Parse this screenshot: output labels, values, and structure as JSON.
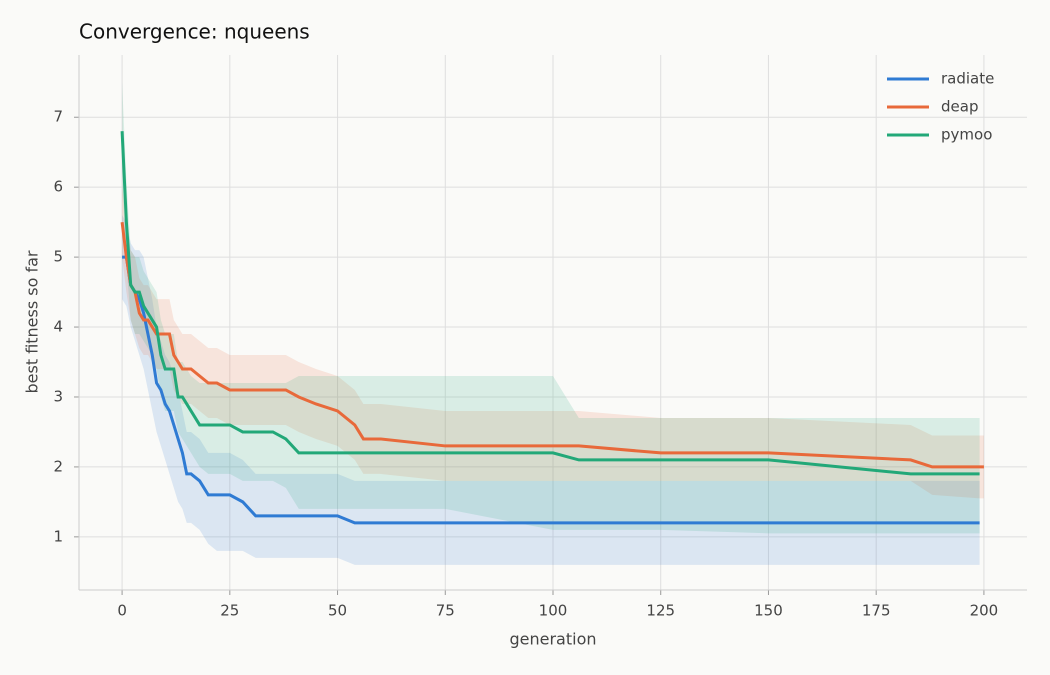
{
  "chart_data": {
    "type": "line",
    "title": "Convergence: nqueens",
    "x_label": "generation",
    "y_label": "best fitness so far",
    "xlim": [
      -10,
      210
    ],
    "ylim": [
      0.24,
      7.89
    ],
    "xticks": [
      0,
      25,
      50,
      75,
      100,
      125,
      150,
      175,
      200
    ],
    "yticks": [
      1,
      2,
      3,
      4,
      5,
      6,
      7
    ],
    "grid": true,
    "legend": "upper right",
    "x": [
      0,
      1,
      2,
      3,
      4,
      5,
      6,
      7,
      8,
      9,
      10,
      11,
      12,
      13,
      14,
      15,
      16,
      18,
      20,
      22,
      25,
      28,
      31,
      35,
      38,
      41,
      45,
      50,
      54,
      56,
      60,
      75,
      100,
      106,
      125,
      150,
      183,
      188,
      199,
      200
    ],
    "series": [
      {
        "name": "radiate",
        "color": "#2f7bd3",
        "values": [
          5.0,
          5.0,
          4.6,
          4.5,
          4.4,
          4.2,
          3.9,
          3.6,
          3.2,
          3.1,
          2.9,
          2.8,
          2.6,
          2.4,
          2.2,
          1.9,
          1.9,
          1.8,
          1.6,
          1.6,
          1.6,
          1.5,
          1.3,
          1.3,
          1.3,
          1.3,
          1.3,
          1.3,
          1.2,
          1.2,
          1.2,
          1.2,
          1.2,
          1.2,
          1.2,
          1.2,
          1.2,
          1.2,
          1.2,
          null
        ],
        "lower": [
          4.4,
          4.3,
          4.0,
          3.8,
          3.6,
          3.4,
          3.1,
          2.8,
          2.5,
          2.3,
          2.1,
          1.9,
          1.7,
          1.5,
          1.4,
          1.2,
          1.2,
          1.1,
          0.9,
          0.8,
          0.8,
          0.8,
          0.7,
          0.7,
          0.7,
          0.7,
          0.7,
          0.7,
          0.6,
          0.6,
          0.6,
          0.6,
          0.6,
          0.6,
          0.6,
          0.6,
          0.6,
          0.6,
          0.6,
          null
        ],
        "upper": [
          5.6,
          5.5,
          5.2,
          5.1,
          5.1,
          5.0,
          4.7,
          4.4,
          4.0,
          3.8,
          3.6,
          3.5,
          3.3,
          3.1,
          2.8,
          2.5,
          2.5,
          2.4,
          2.2,
          2.2,
          2.2,
          2.1,
          1.9,
          1.9,
          1.9,
          1.9,
          1.9,
          1.9,
          1.8,
          1.8,
          1.8,
          1.8,
          1.8,
          1.8,
          1.8,
          1.8,
          1.8,
          1.8,
          1.8,
          null
        ]
      },
      {
        "name": "deap",
        "color": "#e8693a",
        "values": [
          5.5,
          5.0,
          4.6,
          4.5,
          4.2,
          4.1,
          4.1,
          4.0,
          3.9,
          3.9,
          3.9,
          3.9,
          3.6,
          3.5,
          3.4,
          3.4,
          3.4,
          3.3,
          3.2,
          3.2,
          3.1,
          3.1,
          3.1,
          3.1,
          3.1,
          3.0,
          2.9,
          2.8,
          2.6,
          2.4,
          2.4,
          2.3,
          2.3,
          2.3,
          2.2,
          2.2,
          2.1,
          2.0,
          2.0,
          2.0
        ],
        "lower": [
          5.0,
          4.5,
          4.1,
          3.9,
          3.7,
          3.6,
          3.6,
          3.5,
          3.4,
          3.4,
          3.4,
          3.4,
          3.1,
          3.0,
          2.9,
          2.9,
          2.9,
          2.8,
          2.7,
          2.7,
          2.6,
          2.6,
          2.6,
          2.6,
          2.6,
          2.5,
          2.4,
          2.3,
          2.1,
          1.9,
          1.9,
          1.8,
          1.8,
          1.8,
          1.8,
          1.8,
          1.8,
          1.6,
          1.55,
          1.55
        ],
        "upper": [
          6.0,
          5.5,
          5.1,
          5.0,
          4.7,
          4.6,
          4.6,
          4.5,
          4.4,
          4.4,
          4.4,
          4.4,
          4.1,
          4.0,
          3.9,
          3.9,
          3.9,
          3.8,
          3.7,
          3.7,
          3.6,
          3.6,
          3.6,
          3.6,
          3.6,
          3.5,
          3.4,
          3.3,
          3.1,
          2.9,
          2.9,
          2.8,
          2.8,
          2.8,
          2.7,
          2.7,
          2.6,
          2.45,
          2.45,
          2.45
        ]
      },
      {
        "name": "pymoo",
        "color": "#22a878",
        "values": [
          6.8,
          5.5,
          4.6,
          4.5,
          4.5,
          4.3,
          4.2,
          4.1,
          4.0,
          3.6,
          3.4,
          3.4,
          3.4,
          3.0,
          3.0,
          2.9,
          2.8,
          2.6,
          2.6,
          2.6,
          2.6,
          2.5,
          2.5,
          2.5,
          2.4,
          2.2,
          2.2,
          2.2,
          2.2,
          2.2,
          2.2,
          2.2,
          2.2,
          2.1,
          2.1,
          2.1,
          1.9,
          1.9,
          1.9,
          null
        ],
        "lower": [
          6.0,
          4.9,
          4.1,
          3.9,
          3.9,
          3.8,
          3.7,
          3.6,
          3.4,
          3.0,
          2.8,
          2.8,
          2.8,
          2.5,
          2.4,
          2.3,
          2.2,
          2.0,
          1.9,
          1.9,
          1.9,
          1.8,
          1.8,
          1.8,
          1.7,
          1.4,
          1.4,
          1.4,
          1.4,
          1.4,
          1.4,
          1.4,
          1.1,
          1.1,
          1.1,
          1.05,
          1.05,
          1.05,
          1.05,
          null
        ],
        "upper": [
          7.5,
          6.1,
          5.1,
          5.0,
          5.0,
          4.8,
          4.7,
          4.6,
          4.5,
          4.1,
          3.9,
          3.9,
          3.9,
          3.5,
          3.5,
          3.4,
          3.3,
          3.2,
          3.2,
          3.2,
          3.2,
          3.2,
          3.2,
          3.2,
          3.2,
          3.3,
          3.3,
          3.3,
          3.3,
          3.3,
          3.3,
          3.3,
          3.3,
          2.7,
          2.7,
          2.7,
          2.7,
          2.7,
          2.7,
          null
        ]
      }
    ]
  }
}
